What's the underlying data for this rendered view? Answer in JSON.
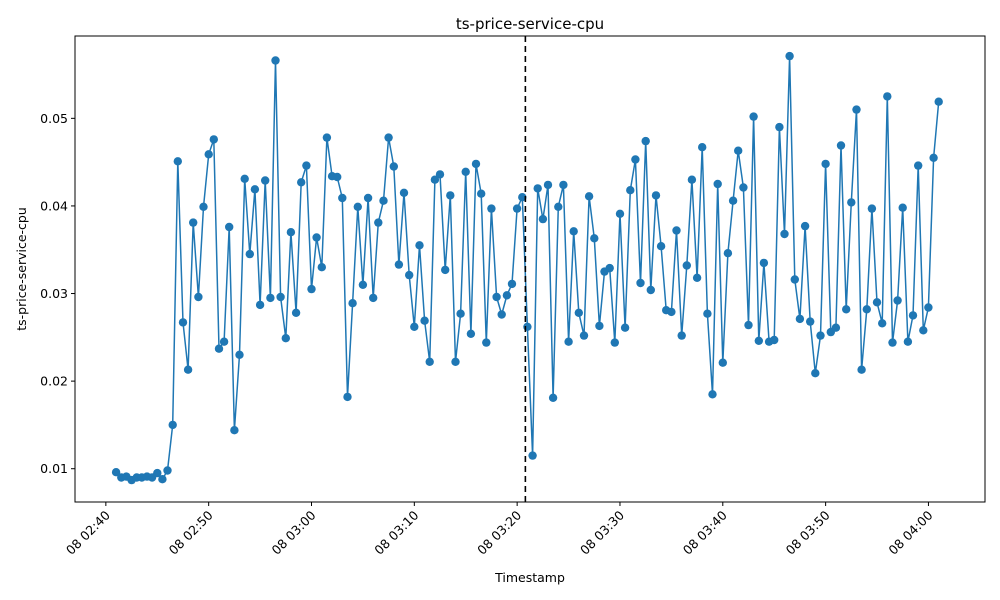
{
  "chart_data": {
    "type": "line",
    "title": "ts-price-service-cpu",
    "xlabel": "Timestamp",
    "ylabel": "ts-price-service-cpu",
    "x_ticks": [
      "08 02:40",
      "08 02:50",
      "08 03:00",
      "08 03:10",
      "08 03:20",
      "08 03:30",
      "08 03:40",
      "08 03:50",
      "08 04:00"
    ],
    "x_range_minutes": [
      -3.0,
      5.5
    ],
    "y_ticks": [
      "0.01",
      "0.02",
      "0.03",
      "0.04",
      "0.05"
    ],
    "ylim": [
      0.0062,
      0.0594
    ],
    "vline_time": "08 03:20.8",
    "x_start": "08 02:41",
    "grid": false,
    "series": [
      {
        "color": "#1f77b4",
        "marker": "circle",
        "values": [
          0.0096,
          0.009,
          0.0091,
          0.0087,
          0.009,
          0.009,
          0.0091,
          0.009,
          0.0095,
          0.0088,
          0.0098,
          0.015,
          0.0451,
          0.0267,
          0.0213,
          0.0381,
          0.0296,
          0.0399,
          0.0459,
          0.0476,
          0.0237,
          0.0245,
          0.0376,
          0.0144,
          0.023,
          0.0431,
          0.0345,
          0.0419,
          0.0287,
          0.0429,
          0.0295,
          0.0566,
          0.0296,
          0.0249,
          0.037,
          0.0278,
          0.0427,
          0.0446,
          0.0305,
          0.0364,
          0.033,
          0.0478,
          0.0434,
          0.0433,
          0.0409,
          0.0182,
          0.0289,
          0.0399,
          0.031,
          0.0409,
          0.0295,
          0.0381,
          0.0406,
          0.0478,
          0.0445,
          0.0333,
          0.0415,
          0.0321,
          0.0262,
          0.0355,
          0.0269,
          0.0222,
          0.043,
          0.0436,
          0.0327,
          0.0412,
          0.0222,
          0.0277,
          0.0439,
          0.0254,
          0.0448,
          0.0414,
          0.0244,
          0.0397,
          0.0296,
          0.0276,
          0.0298,
          0.0311,
          0.0397,
          0.041,
          0.0262,
          0.0115,
          0.042,
          0.0385,
          0.0424,
          0.0181,
          0.0399,
          0.0424,
          0.0245,
          0.0371,
          0.0278,
          0.0252,
          0.0411,
          0.0363,
          0.0263,
          0.0325,
          0.0329,
          0.0244,
          0.0391,
          0.0261,
          0.0418,
          0.0453,
          0.0312,
          0.0474,
          0.0304,
          0.0412,
          0.0354,
          0.0281,
          0.0279,
          0.0372,
          0.0252,
          0.0332,
          0.043,
          0.0318,
          0.0467,
          0.0277,
          0.0185,
          0.0425,
          0.0221,
          0.0346,
          0.0406,
          0.0463,
          0.0421,
          0.0264,
          0.0502,
          0.0246,
          0.0335,
          0.0245,
          0.0247,
          0.049,
          0.0368,
          0.0571,
          0.0316,
          0.0271,
          0.0377,
          0.0268,
          0.0209,
          0.0252,
          0.0448,
          0.0256,
          0.0261,
          0.0469,
          0.0282,
          0.0404,
          0.051,
          0.0213,
          0.0282,
          0.0397,
          0.029,
          0.0266,
          0.0525,
          0.0244,
          0.0292,
          0.0398,
          0.0245,
          0.0275,
          0.0446,
          0.0258,
          0.0284,
          0.0455,
          0.0519
        ]
      }
    ],
    "vline": {
      "style": "dashed",
      "color": "#000000"
    }
  }
}
